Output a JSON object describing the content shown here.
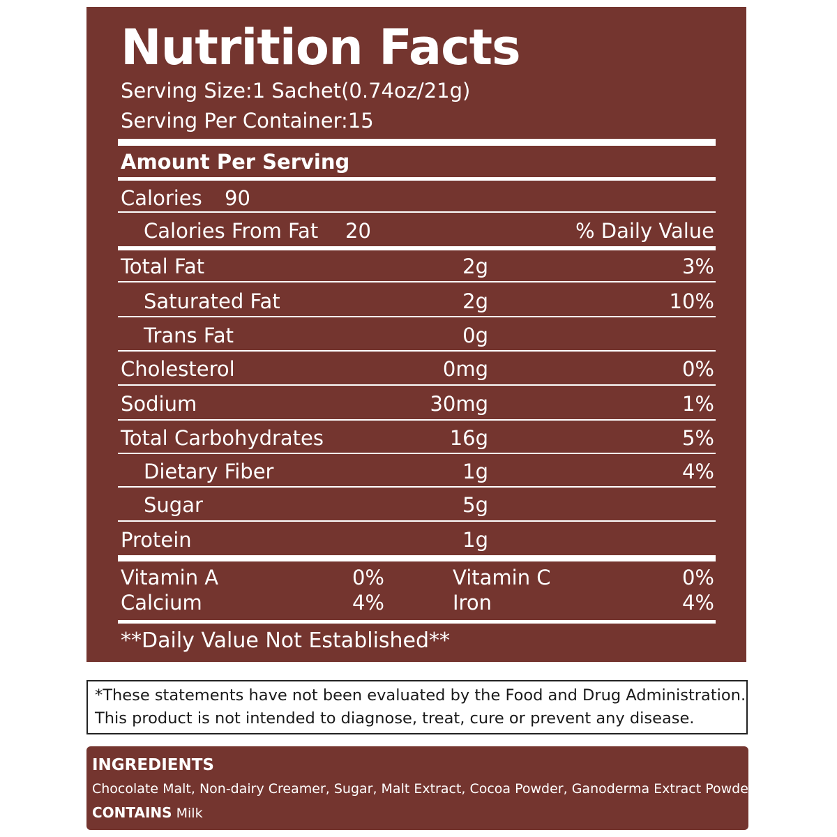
{
  "panel": {
    "title": "Nutrition Facts",
    "serving_size": "Serving Size:1 Sachet(0.74oz/21g)",
    "servings_per_container": "Serving Per Container:15",
    "amount_per_serving": "Amount Per Serving",
    "calories_label": "Calories",
    "calories_value": "90",
    "calories_from_fat_label": "Calories From Fat",
    "calories_from_fat_value": "20",
    "daily_value_header": "% Daily  Value",
    "nutrients": [
      {
        "label": "Total Fat",
        "amount": "2g",
        "daily": "3%"
      },
      {
        "label": "Saturated Fat",
        "amount": "2g",
        "daily": "10%"
      },
      {
        "label": "Trans Fat",
        "amount": "0g",
        "daily": ""
      },
      {
        "label": "Cholesterol",
        "amount": "0mg",
        "daily": "0%"
      },
      {
        "label": "Sodium",
        "amount": "30mg",
        "daily": "1%"
      },
      {
        "label": "Total Carbohydrates",
        "amount": "16g",
        "daily": "5%"
      },
      {
        "label": "Dietary  Fiber",
        "amount": "1g",
        "daily": "4%"
      },
      {
        "label": "Sugar",
        "amount": "5g",
        "daily": ""
      },
      {
        "label": "Protein",
        "amount": "1g",
        "daily": ""
      }
    ],
    "vitamins": {
      "vitamin_a_label": "Vitamin A",
      "vitamin_a_value": "0%",
      "vitamin_c_label": "Vitamin C",
      "vitamin_c_value": "0%",
      "calcium_label": "Calcium",
      "calcium_value": "4%",
      "iron_label": "Iron",
      "iron_value": "4%"
    },
    "footnote": "**Daily Value Not Established**",
    "background_color": "#74352f",
    "text_color": "#ffffff"
  },
  "disclaimer": {
    "line1": "*These statements have not been evaluated by the Food and Drug Administration.",
    "line2": "This product is not intended to diagnose, treat, cure or prevent any disease."
  },
  "ingredients": {
    "heading": "INGREDIENTS",
    "list": "Chocolate Malt, Non-dairy Creamer, Sugar, Malt Extract, Cocoa Powder, Ganoderma Extract Powder",
    "contains_label": "CONTAINS",
    "contains_value": "Milk"
  }
}
